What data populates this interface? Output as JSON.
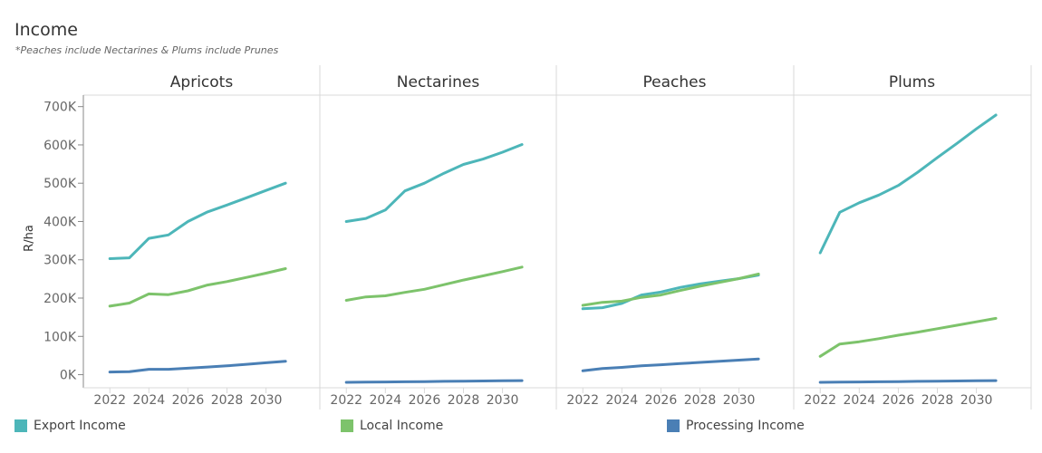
{
  "title": "Income",
  "subtitle": "*Peaches include Nectarines & Plums include Prunes",
  "colors": {
    "export": "#4DB6B9",
    "local": "#7DC36B",
    "processing": "#4A7FB5",
    "grid": "#d9d9d9",
    "axis": "#888888"
  },
  "chart_data": {
    "type": "line",
    "title": "Income",
    "ylabel": "R/ha",
    "xlabel": "",
    "ylim": [
      -20000,
      730000
    ],
    "xlim": [
      2021.2,
      2032.2
    ],
    "y_ticks": [
      0,
      100000,
      200000,
      300000,
      400000,
      500000,
      600000,
      700000
    ],
    "y_tick_labels": [
      "0K",
      "100K",
      "200K",
      "300K",
      "400K",
      "500K",
      "600K",
      "700K"
    ],
    "x_ticks": [
      2022,
      2024,
      2026,
      2028,
      2030
    ],
    "x_tick_labels": [
      "2022",
      "2024",
      "2026",
      "2028",
      "2030"
    ],
    "x": [
      2022,
      2023,
      2024,
      2025,
      2026,
      2027,
      2028,
      2029,
      2030,
      2031
    ],
    "legend": [
      {
        "key": "export",
        "label": "Export Income"
      },
      {
        "key": "local",
        "label": "Local Income"
      },
      {
        "key": "processing",
        "label": "Processing Income"
      }
    ],
    "panels": [
      {
        "name": "Apricots",
        "series": [
          {
            "key": "export",
            "values": [
              303000,
              305000,
              356000,
              365000,
              400000,
              425000,
              443000,
              462000,
              481000,
              500000
            ]
          },
          {
            "key": "local",
            "values": [
              179000,
              187000,
              211000,
              209000,
              219000,
              234000,
              243000,
              254000,
              265000,
              277000
            ]
          },
          {
            "key": "processing",
            "values": [
              7000,
              8000,
              14000,
              14000,
              17000,
              20000,
              23000,
              27000,
              31000,
              35000
            ]
          }
        ]
      },
      {
        "name": "Nectarines",
        "series": [
          {
            "key": "export",
            "values": [
              400000,
              408000,
              430000,
              480000,
              500000,
              526000,
              549000,
              563000,
              581000,
              601000
            ]
          },
          {
            "key": "local",
            "values": [
              194000,
              203000,
              206000,
              215000,
              223000,
              235000,
              247000,
              258000,
              269000,
              281000
            ]
          },
          {
            "key": "processing",
            "values": [
              -20000,
              -19500,
              -19000,
              -18500,
              -18000,
              -17500,
              -17000,
              -16500,
              -16000,
              -15500
            ]
          }
        ]
      },
      {
        "name": "Peaches",
        "series": [
          {
            "key": "export",
            "values": [
              172000,
              175000,
              186000,
              208000,
              216000,
              228000,
              237000,
              244000,
              251000,
              260000
            ]
          },
          {
            "key": "local",
            "values": [
              181000,
              189000,
              192000,
              202000,
              208000,
              220000,
              231000,
              241000,
              251000,
              263000
            ]
          },
          {
            "key": "processing",
            "values": [
              10000,
              16000,
              19000,
              23000,
              26000,
              29000,
              32000,
              35000,
              38000,
              41000
            ]
          }
        ]
      },
      {
        "name": "Plums",
        "series": [
          {
            "key": "export",
            "values": [
              318000,
              424000,
              449000,
              469000,
              494000,
              529000,
              567000,
              604000,
              642000,
              678000
            ]
          },
          {
            "key": "local",
            "values": [
              48000,
              80000,
              86000,
              94000,
              103000,
              111000,
              120000,
              129000,
              138000,
              147000
            ]
          },
          {
            "key": "processing",
            "values": [
              -20000,
              -19500,
              -19000,
              -18500,
              -18000,
              -17500,
              -17000,
              -16500,
              -16000,
              -15500
            ]
          }
        ]
      }
    ]
  }
}
